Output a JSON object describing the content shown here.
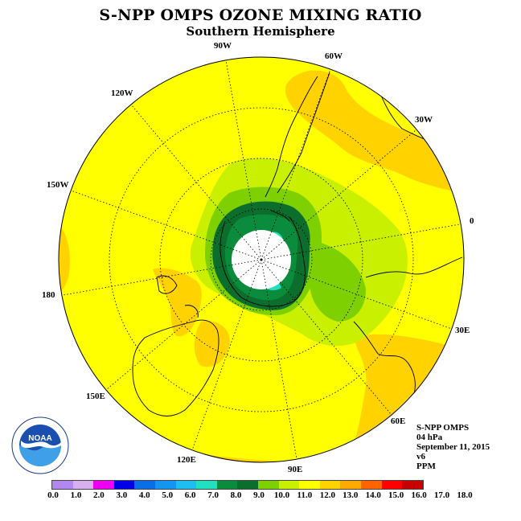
{
  "title": "S-NPP OMPS OZONE MIXING RATIO",
  "subtitle": "Southern Hemisphere",
  "longitude_labels": [
    "90W",
    "60W",
    "30W",
    "0",
    "30E",
    "60E",
    "90E",
    "120E",
    "150E",
    "180",
    "150W",
    "120W"
  ],
  "info": {
    "instrument": "S-NPP OMPS",
    "level": "04 hPa",
    "date": "September 11, 2015",
    "version": "v6",
    "units": "PPM"
  },
  "logo": {
    "text": "NOAA",
    "ring_text": "NATIONAL OCEANIC AND ATMOSPHERIC ADMINISTRATION U.S. DEPARTMENT OF COMMERCE"
  },
  "colorbar": {
    "ticks": [
      "0.0",
      "1.0",
      "2.0",
      "3.0",
      "4.0",
      "5.0",
      "6.0",
      "7.0",
      "8.0",
      "9.0",
      "10.0",
      "11.0",
      "12.0",
      "13.0",
      "14.0",
      "15.0",
      "16.0",
      "17.0",
      "18.0"
    ],
    "colors": [
      "#b387f0",
      "#d8b0f0",
      "#f000f0",
      "#0000e8",
      "#0a6ee6",
      "#1496f0",
      "#1ebef0",
      "#20e0c0",
      "#0a8c3c",
      "#0c6e2c",
      "#7ed000",
      "#c8f000",
      "#ffff00",
      "#ffd200",
      "#ffaa00",
      "#ff6400",
      "#ff0000",
      "#c80000",
      "#7a4a2a"
    ]
  }
}
